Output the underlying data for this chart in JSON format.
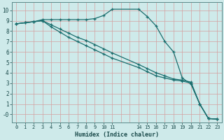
{
  "title": "",
  "xlabel": "Humidex (Indice chaleur)",
  "background_color": "#ceeaea",
  "grid_color": "#d4a0a0",
  "line_color": "#1a6e6e",
  "xlim": [
    -0.5,
    23.5
  ],
  "ylim": [
    -0.75,
    10.75
  ],
  "xticks": [
    0,
    1,
    2,
    3,
    4,
    5,
    6,
    7,
    8,
    9,
    10,
    11,
    14,
    15,
    16,
    17,
    18,
    19,
    20,
    21,
    22,
    23
  ],
  "yticks": [
    0,
    1,
    2,
    3,
    4,
    5,
    6,
    7,
    8,
    9,
    10
  ],
  "line1_x": [
    0,
    1,
    2,
    3,
    4,
    5,
    6,
    7,
    8,
    9,
    10,
    11,
    14,
    15,
    16,
    17,
    18,
    19,
    20,
    21,
    22,
    23
  ],
  "line1_y": [
    8.7,
    8.8,
    8.9,
    9.1,
    9.1,
    9.1,
    9.1,
    9.1,
    9.1,
    9.2,
    9.5,
    10.1,
    10.1,
    9.4,
    8.5,
    7.0,
    6.0,
    3.5,
    2.9,
    1.0,
    -0.4,
    -0.45
  ],
  "line2_x": [
    0,
    1,
    2,
    3,
    4,
    5,
    6,
    7,
    8,
    9,
    10,
    11,
    14,
    15,
    16,
    17,
    18,
    19,
    20,
    21,
    22,
    23
  ],
  "line2_y": [
    8.7,
    8.8,
    8.9,
    9.0,
    8.6,
    8.2,
    7.8,
    7.4,
    7.1,
    6.7,
    6.3,
    5.9,
    4.8,
    4.4,
    4.0,
    3.7,
    3.4,
    3.3,
    3.1,
    1.0,
    -0.4,
    -0.45
  ],
  "line3_x": [
    0,
    1,
    2,
    3,
    4,
    5,
    6,
    7,
    8,
    9,
    10,
    11,
    14,
    15,
    16,
    17,
    18,
    19,
    20,
    21,
    22,
    23
  ],
  "line3_y": [
    8.7,
    8.8,
    8.9,
    9.0,
    8.4,
    7.9,
    7.4,
    7.0,
    6.6,
    6.2,
    5.8,
    5.4,
    4.5,
    4.1,
    3.7,
    3.5,
    3.3,
    3.2,
    3.0,
    1.0,
    -0.4,
    -0.45
  ]
}
